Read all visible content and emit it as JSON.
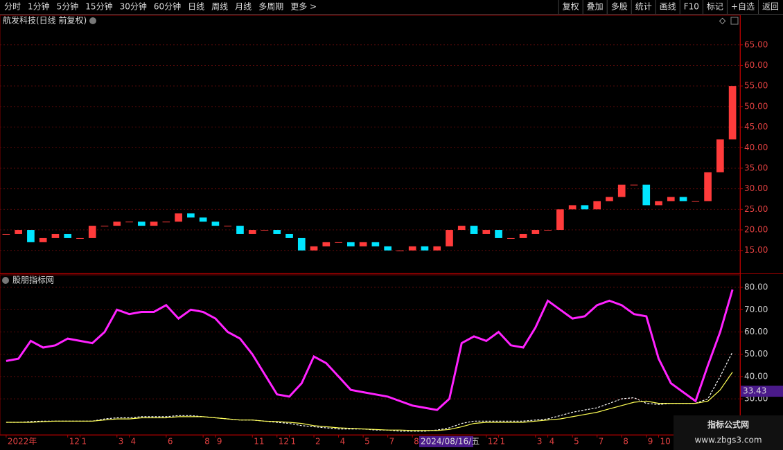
{
  "toolbar": {
    "periods": [
      "分时",
      "1分钟",
      "5分钟",
      "15分钟",
      "30分钟",
      "60分钟",
      "日线",
      "周线",
      "月线",
      "多周期",
      "更多 >"
    ],
    "tools": [
      "复权",
      "叠加",
      "多股",
      "统计",
      "画线",
      "F10",
      "标记",
      "+自选",
      "返回"
    ]
  },
  "chart_data": [
    {
      "type": "candlestick",
      "title": "航发科技(日线 前复权)",
      "up_color": "#ff3b3b",
      "down_color": "#00e5ff",
      "values": [
        19,
        20,
        17,
        18,
        19,
        18,
        18,
        21,
        21,
        22,
        22,
        21,
        22,
        22,
        24,
        23,
        22,
        21,
        21,
        19,
        20,
        20,
        19,
        18,
        15,
        16,
        17,
        17,
        16,
        17,
        16,
        15,
        15,
        16,
        15,
        16,
        20,
        21,
        19,
        20,
        18,
        18,
        19,
        20,
        20,
        25,
        26,
        25,
        27,
        28,
        31,
        31,
        26,
        27,
        28,
        27,
        27,
        34,
        42,
        55
      ],
      "ylim": [
        9.4,
        72.2
      ],
      "yticks": [
        {
          "value": 15,
          "label": "15.00"
        },
        {
          "value": 20,
          "label": "20.00"
        },
        {
          "value": 25,
          "label": "25.00"
        },
        {
          "value": 30,
          "label": "30.00"
        },
        {
          "value": 35,
          "label": "35.00"
        },
        {
          "value": 40,
          "label": "40.00"
        },
        {
          "value": 45,
          "label": "45.00"
        },
        {
          "value": 50,
          "label": "50.00"
        },
        {
          "value": 55,
          "label": "55.00"
        },
        {
          "value": 60,
          "label": "60.00"
        },
        {
          "value": 65,
          "label": "65.00"
        }
      ],
      "grid": true
    },
    {
      "type": "line",
      "title": "股朋指标网",
      "categories": [
        "2022年",
        null,
        null,
        null,
        null,
        "12",
        "1",
        null,
        null,
        "3",
        "4",
        null,
        null,
        "6",
        null,
        null,
        "8",
        "9",
        null,
        null,
        "11",
        null,
        "12",
        "1",
        null,
        "2",
        null,
        "4",
        null,
        "5",
        null,
        "7",
        null,
        "8",
        null,
        null,
        null,
        null,
        null,
        "12",
        "1",
        null,
        null,
        "3",
        "4",
        null,
        "5",
        null,
        "7",
        null,
        "8",
        null,
        "9",
        "10",
        null,
        null,
        null,
        null,
        null,
        null
      ],
      "series": [
        {
          "color": "#ff22ff",
          "dashed": false,
          "values": [
            47,
            48,
            56,
            53,
            54,
            57,
            56,
            55,
            60,
            70,
            68,
            69,
            69,
            72,
            66,
            70,
            69,
            66,
            60,
            57,
            50,
            41,
            32,
            31,
            37,
            49,
            46,
            40,
            34,
            33,
            32,
            31,
            29,
            27,
            26,
            25,
            30,
            55,
            58,
            56,
            60,
            54,
            53,
            62,
            74,
            70,
            66,
            67,
            72,
            74,
            72,
            68,
            67,
            48,
            37,
            33,
            29,
            45,
            60,
            79
          ]
        },
        {
          "color": "#ffffff",
          "dashed": true,
          "values": [
            19.5,
            19.5,
            19.8,
            20,
            20,
            20,
            20,
            20,
            21,
            21.5,
            21.5,
            22,
            22,
            22,
            22.5,
            22.5,
            22,
            21.5,
            21,
            20.5,
            20.5,
            20,
            19.5,
            19,
            18,
            17.5,
            17,
            16.5,
            16.5,
            16.5,
            16,
            16,
            15.5,
            15.5,
            15.5,
            16,
            17,
            19,
            20,
            20,
            20,
            20,
            20,
            20.5,
            21,
            22.5,
            24,
            25,
            26,
            28,
            30,
            30.5,
            28,
            27.5,
            28,
            28,
            28,
            30,
            40,
            51
          ]
        },
        {
          "color": "#ffff55",
          "dashed": false,
          "values": [
            19.5,
            19.5,
            19.5,
            19.8,
            20,
            20,
            20,
            20,
            20.5,
            21,
            21,
            21.5,
            21.5,
            21.5,
            22,
            22,
            22,
            21.5,
            21,
            20.5,
            20.5,
            20,
            19.8,
            19.5,
            19,
            18,
            17.5,
            17,
            16.8,
            16.5,
            16.3,
            16,
            16,
            15.8,
            15.8,
            15.8,
            16.3,
            17.5,
            19,
            19.5,
            19.5,
            19.5,
            19.5,
            20,
            20.5,
            21,
            22,
            23,
            24,
            25.5,
            27,
            28.5,
            29,
            28,
            28,
            28,
            28,
            29,
            34,
            42
          ]
        }
      ],
      "marker": 33.43,
      "cursor_date": "2024/08/16/五",
      "ylim": [
        13.9,
        85.6
      ],
      "yticks": [
        {
          "value": 30,
          "label": "30.00"
        },
        {
          "value": 40,
          "label": "40.00"
        },
        {
          "value": 50,
          "label": "50.00"
        },
        {
          "value": 60,
          "label": "60.00"
        },
        {
          "value": 70,
          "label": "70.00"
        },
        {
          "value": 80,
          "label": "80.00"
        }
      ],
      "grid": true
    }
  ],
  "watermark": {
    "title": "指标公式网",
    "url": "www.zbgs3.com"
  }
}
